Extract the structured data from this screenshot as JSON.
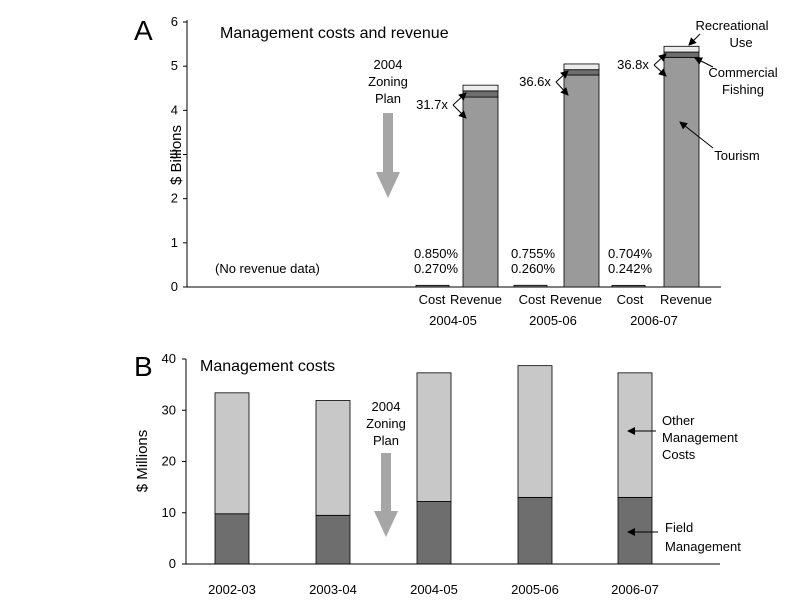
{
  "chart_data": [
    {
      "panel_letter": "A",
      "type": "bar",
      "stacked": true,
      "title": "Management costs and revenue",
      "ylabel": "$ Billions",
      "ylim": [
        0,
        6
      ],
      "yticks": [
        "0",
        "1",
        "2",
        "3",
        "4",
        "5",
        "6"
      ],
      "no_data_note": "(No revenue data)",
      "event_label": [
        "2004",
        "Zoning",
        "Plan"
      ],
      "groups": [
        {
          "year": "2004-05",
          "cost": {
            "label": "Cost",
            "value": 0.038,
            "pct_top": "0.850%",
            "pct_bottom": "0.270%"
          },
          "revenue": {
            "label": "Revenue",
            "ratio": "31.7x",
            "tourism": 4.3,
            "commercial_fishing": 0.14,
            "recreational_use": 0.13
          }
        },
        {
          "year": "2005-06",
          "cost": {
            "label": "Cost",
            "value": 0.039,
            "pct_top": "0.755%",
            "pct_bottom": "0.260%"
          },
          "revenue": {
            "label": "Revenue",
            "ratio": "36.6x",
            "tourism": 4.8,
            "commercial_fishing": 0.12,
            "recreational_use": 0.13
          }
        },
        {
          "year": "2006-07",
          "cost": {
            "label": "Cost",
            "value": 0.037,
            "pct_top": "0.704%",
            "pct_bottom": "0.242%"
          },
          "revenue": {
            "label": "Revenue",
            "ratio": "36.8x",
            "tourism": 5.2,
            "commercial_fishing": 0.12,
            "recreational_use": 0.13
          }
        }
      ],
      "annotations": {
        "recreational_use": [
          "Recreational",
          "Use"
        ],
        "commercial_fishing": [
          "Commercial",
          "Fishing"
        ],
        "tourism": [
          "Tourism"
        ]
      },
      "colors": {
        "tourism": "#9a9a9a",
        "commercial_fishing": "#6e6e6e",
        "recreational_use": "#ececec",
        "cost": "#808080"
      }
    },
    {
      "panel_letter": "B",
      "type": "bar",
      "stacked": true,
      "title": "Management costs",
      "ylabel": "$ Millions",
      "ylim": [
        0,
        40
      ],
      "yticks": [
        "0",
        "10",
        "20",
        "30",
        "40"
      ],
      "categories": [
        "2002-03",
        "2003-04",
        "2004-05",
        "2005-06",
        "2006-07"
      ],
      "event_label": [
        "2004",
        "Zoning",
        "Plan"
      ],
      "series": [
        {
          "name": "Field Management",
          "name_lines": [
            "Field",
            "Management"
          ],
          "values": [
            9.8,
            9.5,
            12.2,
            13.0,
            13.0
          ],
          "color": "#6e6e6e"
        },
        {
          "name": "Other Management Costs",
          "name_lines": [
            "Other",
            "Management",
            "Costs"
          ],
          "values": [
            23.6,
            22.4,
            25.1,
            25.7,
            24.3
          ],
          "color": "#c8c8c8"
        }
      ]
    }
  ]
}
